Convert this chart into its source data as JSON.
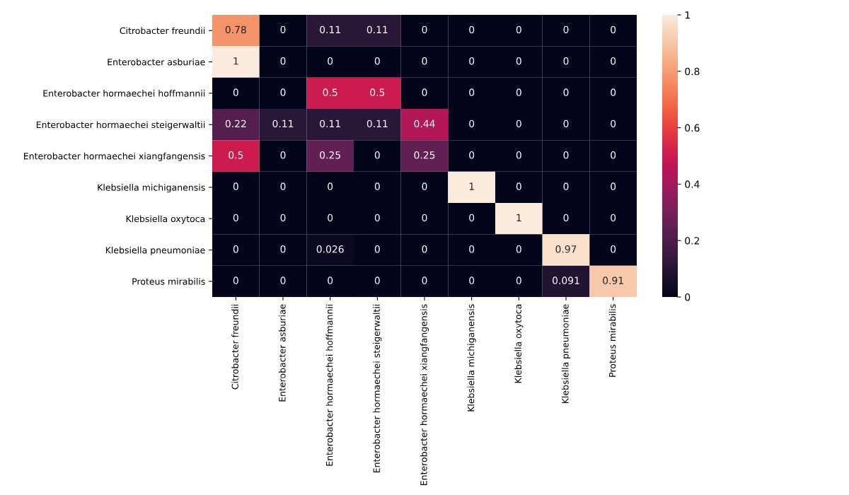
{
  "chart_data": {
    "type": "heatmap",
    "categories": [
      "Citrobacter freundii",
      "Enterobacter asburiae",
      "Enterobacter hormaechei hoffmannii",
      "Enterobacter hormaechei steigerwaltii",
      "Enterobacter hormaechei xiangfangensis",
      "Klebsiella michiganensis",
      "Klebsiella oxytoca",
      "Klebsiella pneumoniae",
      "Proteus mirabilis"
    ],
    "y_categories": [
      "Citrobacter freundii",
      "Enterobacter asburiae",
      "Enterobacter hormaechei hoffmannii",
      "Enterobacter hormaechei steigerwaltii",
      "Enterobacter hormaechei xiangfangensis",
      "Klebsiella michiganensis",
      "Klebsiella oxytoca",
      "Klebsiella pneumoniae",
      "Proteus mirabilis"
    ],
    "cells": [
      [
        0.78,
        0,
        0.11,
        0.11,
        0,
        0,
        0,
        0,
        0
      ],
      [
        1,
        0,
        0,
        0,
        0,
        0,
        0,
        0,
        0
      ],
      [
        0,
        0,
        0.5,
        0.5,
        0,
        0,
        0,
        0,
        0
      ],
      [
        0.22,
        0.11,
        0.11,
        0.11,
        0.44,
        0,
        0,
        0,
        0
      ],
      [
        0.5,
        0,
        0.25,
        0,
        0.25,
        0,
        0,
        0,
        0
      ],
      [
        0,
        0,
        0,
        0,
        0,
        1,
        0,
        0,
        0
      ],
      [
        0,
        0,
        0,
        0,
        0,
        0,
        1,
        0,
        0
      ],
      [
        0,
        0,
        0.026,
        0,
        0,
        0,
        0,
        0.97,
        0
      ],
      [
        0,
        0,
        0,
        0,
        0,
        0,
        0,
        0.091,
        0.91
      ]
    ],
    "clim": [
      0,
      1
    ],
    "cticks": [
      0,
      0.2,
      0.4,
      0.6,
      0.8,
      1
    ],
    "data_labels": true
  }
}
